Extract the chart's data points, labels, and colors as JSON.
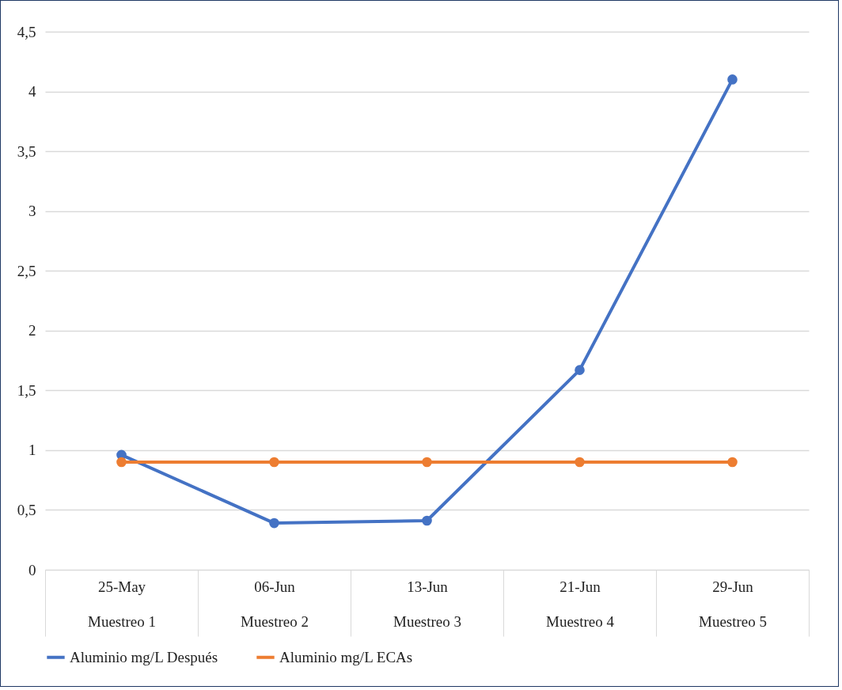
{
  "chart_data": {
    "type": "line",
    "categories": [
      "25-May\nMuestreo 1",
      "06-Jun\nMuestreo 2",
      "13-Jun\nMuestreo 3",
      "21-Jun\nMuestreo 4",
      "29-Jun\nMuestreo 5"
    ],
    "series": [
      {
        "name": "Aluminio mg/L Después",
        "color": "#4472c4",
        "values": [
          0.96,
          0.39,
          0.41,
          1.67,
          4.1
        ]
      },
      {
        "name": "Aluminio mg/L ECAs",
        "color": "#ed7d31",
        "values": [
          0.9,
          0.9,
          0.9,
          0.9,
          0.9
        ]
      }
    ],
    "ylim": [
      0,
      4.5
    ],
    "yticks": [
      0,
      {
        "value": 0.5,
        "label": "0,5"
      },
      1,
      {
        "value": 1.5,
        "label": "1,5"
      },
      2,
      {
        "value": 2.5,
        "label": "2,5"
      },
      3,
      {
        "value": 3.5,
        "label": "3,5"
      },
      4,
      {
        "value": 4.5,
        "label": "4,5"
      }
    ],
    "grid": "y",
    "legend": "bottom",
    "marker": "circle",
    "line_style": "solid"
  }
}
